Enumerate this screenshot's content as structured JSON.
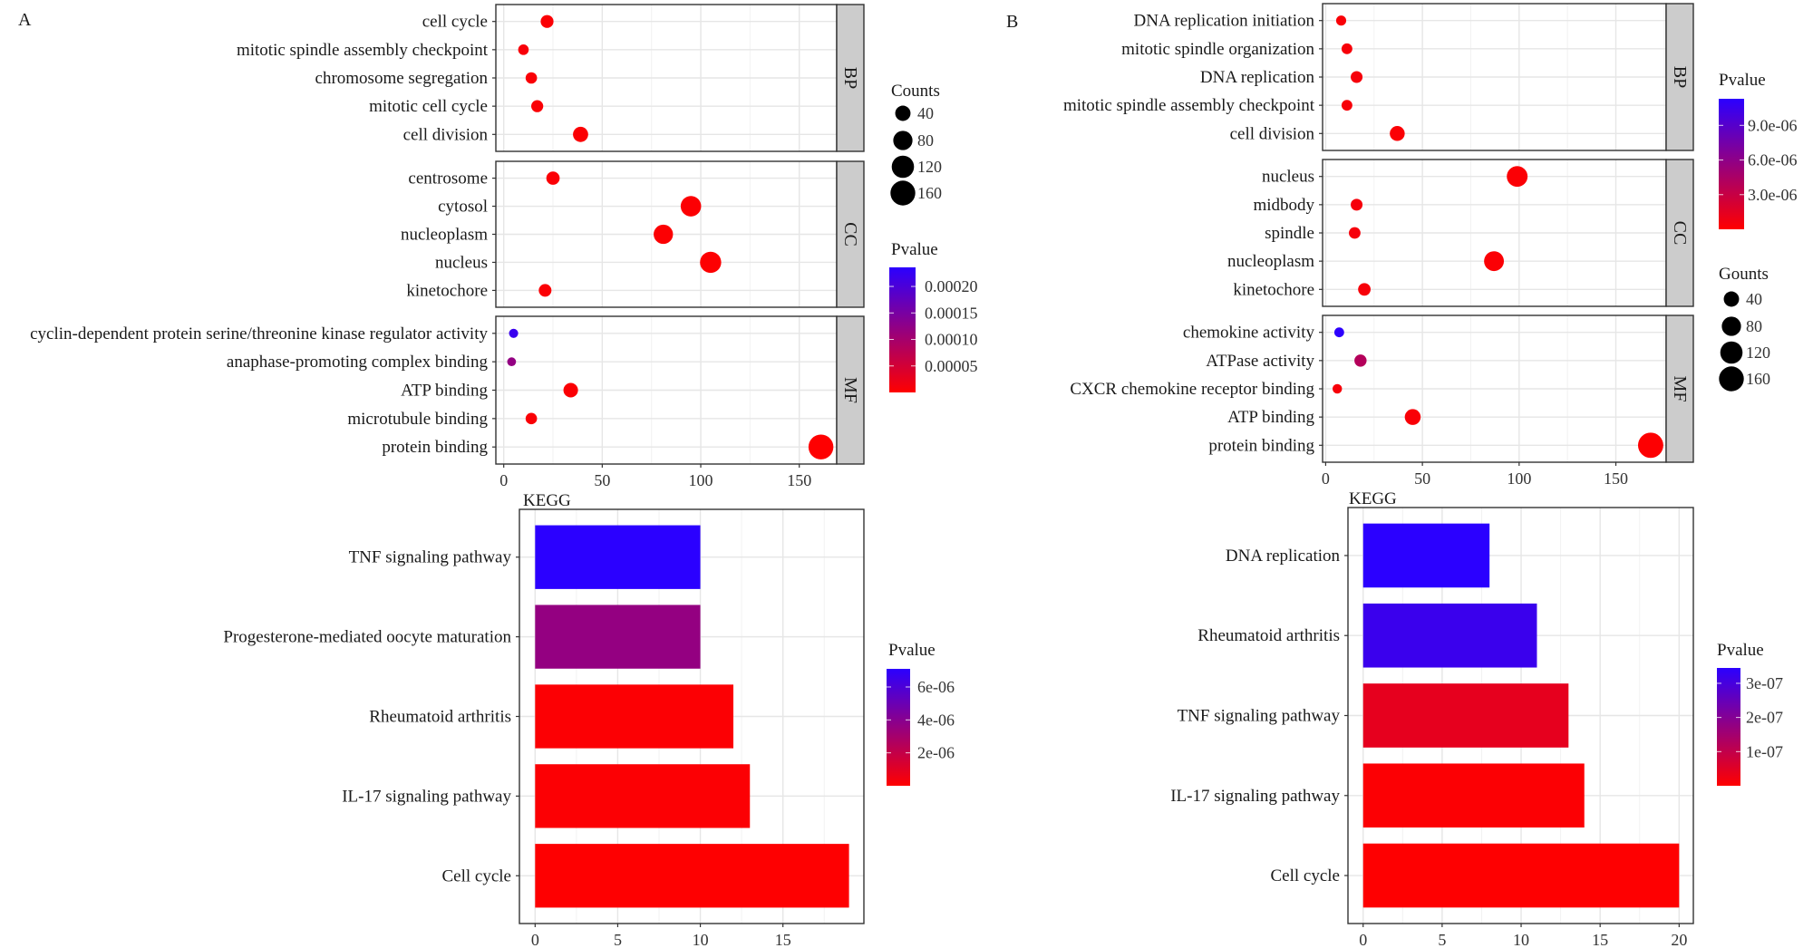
{
  "chart_data": [
    {
      "id": "A_GO",
      "panel_letter": "A",
      "type": "scatter",
      "title": "",
      "xlabel": "",
      "ylabel": "",
      "xlim": [
        -4,
        169
      ],
      "xticks": [
        0,
        50,
        100,
        150
      ],
      "grid": true,
      "facets": [
        {
          "name": "BP",
          "terms": [
            "cell cycle",
            "mitotic spindle assembly checkpoint",
            "chromosome segregation",
            "mitotic cell cycle",
            "cell division"
          ],
          "counts": [
            22,
            10,
            14,
            17,
            39
          ],
          "pvalues": [
            5e-06,
            8e-06,
            6e-06,
            6e-06,
            4e-06
          ]
        },
        {
          "name": "CC",
          "terms": [
            "centrosome",
            "cytosol",
            "nucleoplasm",
            "nucleus",
            "kinetochore"
          ],
          "counts": [
            25,
            95,
            81,
            105,
            21
          ],
          "pvalues": [
            5e-06,
            3e-06,
            3e-06,
            2e-06,
            5e-06
          ]
        },
        {
          "name": "MF",
          "terms": [
            "cyclin-dependent protein serine/threonine kinase regulator activity",
            "anaphase-promoting complex binding",
            "ATP binding",
            "microtubule binding",
            "protein binding"
          ],
          "counts": [
            5,
            4,
            34,
            14,
            161
          ],
          "pvalues": [
            0.00022,
            0.00012,
            4e-06,
            6e-06,
            1e-06
          ]
        }
      ],
      "legend_size": {
        "title": "Counts",
        "values": [
          40,
          80,
          120,
          160
        ],
        "placement": "right"
      },
      "legend_color": {
        "title": "Pvalue",
        "ticks": [
          0.0002,
          0.00015,
          0.0001,
          5e-05
        ],
        "tick_labels": [
          "0.00020",
          "0.00015",
          "0.00010",
          "0.00005"
        ],
        "range": [
          0,
          0.000236
        ],
        "low_color": "#ff0000",
        "high_color": "#2b00ff",
        "placement": "right"
      }
    },
    {
      "id": "B_GO",
      "panel_letter": "B",
      "type": "scatter",
      "title": "",
      "xlabel": "",
      "ylabel": "",
      "xlim": [
        -1.6,
        176
      ],
      "xticks": [
        0,
        50,
        100,
        150
      ],
      "grid": true,
      "facets": [
        {
          "name": "BP",
          "terms": [
            "DNA replication initiation",
            "mitotic spindle organization",
            "DNA replication",
            "mitotic spindle assembly checkpoint",
            "cell division"
          ],
          "counts": [
            8,
            11,
            16,
            11,
            37
          ],
          "pvalues": [
            3e-07,
            4e-07,
            5e-07,
            4e-07,
            2e-07
          ]
        },
        {
          "name": "CC",
          "terms": [
            "nucleus",
            "midbody",
            "spindle",
            "nucleoplasm",
            "kinetochore"
          ],
          "counts": [
            99,
            16,
            15,
            87,
            20
          ],
          "pvalues": [
            2e-07,
            5e-07,
            5e-07,
            2e-07,
            4e-07
          ]
        },
        {
          "name": "MF",
          "terms": [
            "chemokine activity",
            "ATPase activity",
            "CXCR chemokine receptor binding",
            "ATP binding",
            "protein binding"
          ],
          "counts": [
            7,
            18,
            6,
            45,
            168
          ],
          "pvalues": [
            1.12e-05,
            4e-06,
            4e-07,
            3e-07,
            1e-07
          ]
        }
      ],
      "legend_size": {
        "title": "Gounts",
        "values": [
          40,
          80,
          120,
          160
        ],
        "placement": "right"
      },
      "legend_color": {
        "title": "Pvalue",
        "ticks": [
          9e-06,
          6e-06,
          3e-06
        ],
        "tick_labels": [
          "9.0e-06",
          "6.0e-06",
          "3.0e-06"
        ],
        "range": [
          0,
          1.13e-05
        ],
        "low_color": "#ff0000",
        "high_color": "#2b00ff",
        "placement": "right"
      }
    },
    {
      "id": "A_KEGG",
      "type": "bar",
      "orientation": "horizontal",
      "title": "KEGG",
      "xlabel": "",
      "ylabel": "",
      "xlim": [
        -0.95,
        19.9
      ],
      "xticks": [
        0,
        5,
        10,
        15
      ],
      "grid": true,
      "categories": [
        "TNF signaling pathway",
        "Progesterone-mediated oocyte maturation",
        "Rheumatoid arthritis",
        "IL-17 signaling pathway",
        "Cell cycle"
      ],
      "values": [
        10,
        10,
        12,
        13,
        19
      ],
      "pvalues": [
        7.1e-06,
        3.6e-06,
        1e-07,
        1e-07,
        2e-08
      ],
      "legend_color": {
        "title": "Pvalue",
        "ticks": [
          6e-06,
          4e-06,
          2e-06
        ],
        "tick_labels": [
          "6e-06",
          "4e-06",
          "2e-06"
        ],
        "range": [
          0,
          7.1e-06
        ],
        "low_color": "#ff0000",
        "high_color": "#2b00ff",
        "placement": "right"
      }
    },
    {
      "id": "B_KEGG",
      "type": "bar",
      "orientation": "horizontal",
      "title": "KEGG",
      "xlabel": "",
      "ylabel": "",
      "xlim": [
        -0.96,
        20.9
      ],
      "xticks": [
        0,
        5,
        10,
        15,
        20
      ],
      "grid": true,
      "categories": [
        "DNA replication",
        "Rheumatoid arthritis",
        "TNF signaling pathway",
        "IL-17 signaling pathway",
        "Cell cycle"
      ],
      "values": [
        8,
        11,
        13,
        14,
        20
      ],
      "pvalues": [
        3.45e-07,
        3.2e-07,
        4e-08,
        5e-09,
        1e-09
      ],
      "legend_color": {
        "title": "Pvalue",
        "ticks": [
          3e-07,
          2e-07,
          1e-07
        ],
        "tick_labels": [
          "3e-07",
          "2e-07",
          "1e-07"
        ],
        "range": [
          0,
          3.45e-07
        ],
        "low_color": "#ff0000",
        "high_color": "#2b00ff",
        "placement": "right"
      }
    }
  ]
}
